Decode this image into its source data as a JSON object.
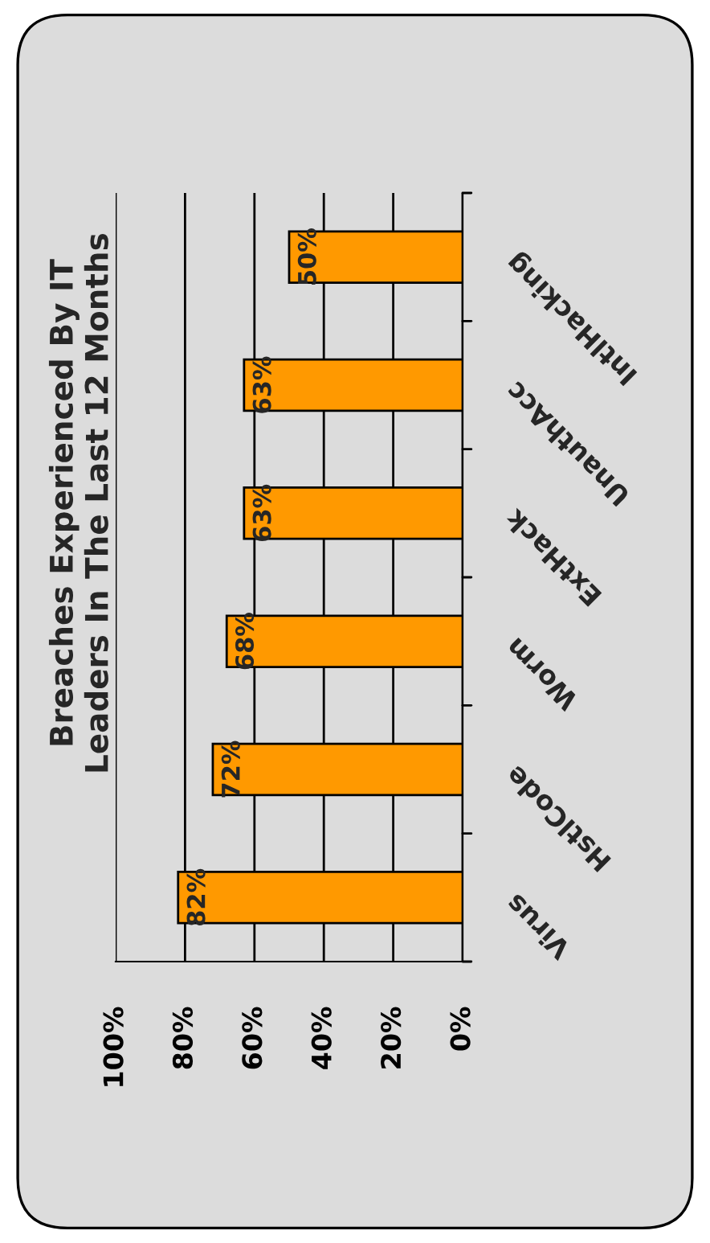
{
  "chart_data": {
    "type": "bar",
    "orientation": "horizontal",
    "title": "Breaches Experienced By IT\nLeaders In The Last 12 Months",
    "categories": [
      "IntlHacking",
      "UnauthAcc",
      "ExtHack",
      "Worm",
      "HstlCode",
      "Virus"
    ],
    "values": [
      50,
      63,
      63,
      68,
      72,
      82
    ],
    "color": "#ff9900",
    "xlim": [
      100,
      0
    ],
    "xticks": [
      {
        "value": 100,
        "label": "100%"
      },
      {
        "value": 80,
        "label": "80%"
      },
      {
        "value": 60,
        "label": "60%"
      },
      {
        "value": 40,
        "label": "40%"
      },
      {
        "value": 20,
        "label": "20%"
      },
      {
        "value": 0,
        "label": "0%"
      }
    ],
    "value_labels": [
      "50%",
      "63%",
      "63%",
      "68%",
      "72%",
      "82%"
    ],
    "grid": "x"
  }
}
